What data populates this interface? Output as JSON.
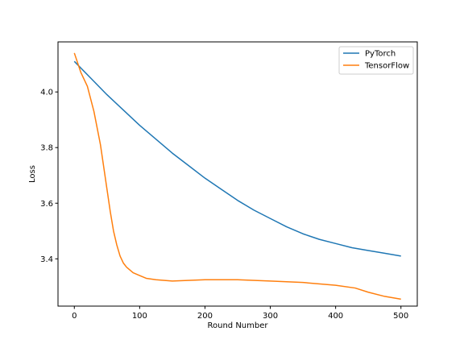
{
  "chart_data": {
    "type": "line",
    "title": "",
    "xlabel": "Round Number",
    "ylabel": "Loss",
    "xlim": [
      -25,
      525
    ],
    "ylim": [
      3.23,
      4.18
    ],
    "xticks": [
      0,
      100,
      200,
      300,
      400,
      500
    ],
    "yticks": [
      3.4,
      3.6,
      3.8,
      4.0
    ],
    "ytick_labels": [
      "3.4",
      "3.6",
      "3.8",
      "4.0"
    ],
    "grid": false,
    "legend": "top-right",
    "series": [
      {
        "name": "PyTorch",
        "color": "#1f77b4",
        "x": [
          0,
          25,
          50,
          75,
          100,
          125,
          150,
          175,
          200,
          225,
          250,
          275,
          300,
          325,
          350,
          375,
          400,
          425,
          450,
          475,
          500
        ],
        "y": [
          4.11,
          4.05,
          3.99,
          3.935,
          3.88,
          3.83,
          3.78,
          3.735,
          3.69,
          3.65,
          3.61,
          3.575,
          3.545,
          3.515,
          3.49,
          3.47,
          3.455,
          3.44,
          3.43,
          3.42,
          3.41
        ]
      },
      {
        "name": "TensorFlow",
        "color": "#ff7f0e",
        "x": [
          0,
          10,
          20,
          30,
          40,
          50,
          55,
          60,
          65,
          70,
          75,
          80,
          90,
          100,
          110,
          125,
          150,
          200,
          250,
          300,
          350,
          400,
          430,
          450,
          475,
          500
        ],
        "y": [
          4.14,
          4.07,
          4.02,
          3.93,
          3.81,
          3.65,
          3.57,
          3.5,
          3.45,
          3.41,
          3.385,
          3.37,
          3.35,
          3.34,
          3.33,
          3.325,
          3.32,
          3.325,
          3.325,
          3.32,
          3.315,
          3.305,
          3.295,
          3.28,
          3.265,
          3.255
        ]
      }
    ]
  }
}
